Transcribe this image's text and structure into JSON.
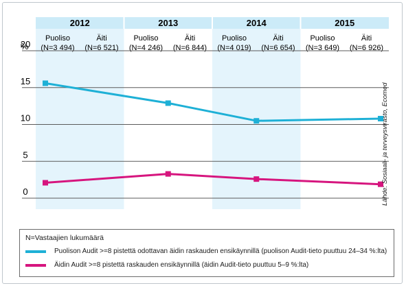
{
  "unit_label": "%",
  "source": "Lähde: Sosiaali- ja terveysvirasto, Ecomed",
  "years": [
    {
      "year": "2012",
      "groups": [
        {
          "name": "Puoliso",
          "n": "(N=3 494)"
        },
        {
          "name": "Äiti",
          "n": "(N=6 521)"
        }
      ]
    },
    {
      "year": "2013",
      "groups": [
        {
          "name": "Puoliso",
          "n": "(N=4 246)"
        },
        {
          "name": "Äiti",
          "n": "(N=6 844)"
        }
      ]
    },
    {
      "year": "2014",
      "groups": [
        {
          "name": "Puoliso",
          "n": "(N=4 019)"
        },
        {
          "name": "Äiti",
          "n": "(N=6 654)"
        }
      ]
    },
    {
      "year": "2015",
      "groups": [
        {
          "name": "Puoliso",
          "n": "(N=3 649)"
        },
        {
          "name": "Äiti",
          "n": "(N=6 926)"
        }
      ]
    }
  ],
  "legend": {
    "note": "N=Vastaajien lukumäärä",
    "items": [
      {
        "label": "Puolison Audit >=8 pistettä odottavan äidin raskauden ensikäynnillä (puolison Audit-tieto puuttuu 24–34 %:lta)",
        "color": "#1eb0d6"
      },
      {
        "label": "Äidin Audit >=8 pistettä raskauden ensikäynnillä (äidin Audit-tieto puuttuu 5–9 %:lta)",
        "color": "#d6157e"
      }
    ]
  },
  "colors": {
    "header_band": "#ccebf8",
    "shade_band": "#e4f4fc",
    "grid": "#5a5a5a"
  },
  "chart_data": {
    "type": "line",
    "categories": [
      "2012",
      "2013",
      "2014",
      "2015"
    ],
    "ylim": [
      0,
      20
    ],
    "yticks": [
      "0",
      "5",
      "10",
      "15",
      "20"
    ],
    "grid": true,
    "legend_position": "bottom",
    "series": [
      {
        "name": "Puolison Audit >=8 pistettä odottavan äidin raskauden ensikäynnillä (puolison Audit-tieto puuttuu 24–34 %:lta)",
        "color": "#1eb0d6",
        "values": [
          16.8,
          14.1,
          11.7,
          12.0
        ]
      },
      {
        "name": "Äidin Audit >=8 pistettä raskauden ensikäynnillä (äidin Audit-tieto puuttuu 5–9 %:lta)",
        "color": "#d6157e",
        "values": [
          3.3,
          4.5,
          3.8,
          3.1
        ]
      }
    ]
  }
}
